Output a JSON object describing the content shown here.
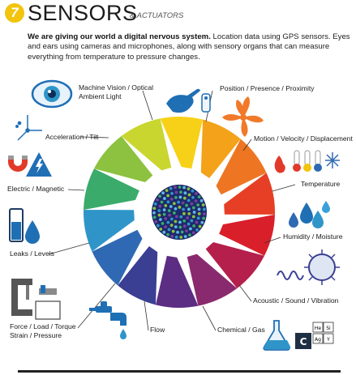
{
  "header": {
    "number": "7",
    "title": "SENSORS",
    "subtitle": "& ACTUATORS",
    "intro_bold": "We are giving our world a digital nervous system.",
    "intro_rest": " Location data using GPS sensors. Eyes and ears using cameras and microphones, along with sensory organs that can measure everything from temperature to pressure changes."
  },
  "sensors": [
    {
      "id": "vision",
      "line1": "Machine Vision / Optical",
      "line2": "Ambient Light",
      "icon": "eye-icon"
    },
    {
      "id": "position",
      "line1": "Position / Presence / Proximity",
      "line2": "",
      "icon": "hand-touch-icon"
    },
    {
      "id": "motion",
      "line1": "Motion / Velocity / Displacement",
      "line2": "",
      "icon": "fan-icon"
    },
    {
      "id": "temperature",
      "line1": "Temperature",
      "line2": "",
      "icon": "thermometer-icon"
    },
    {
      "id": "humidity",
      "line1": "Humidity / Moisture",
      "line2": "",
      "icon": "water-drops-icon"
    },
    {
      "id": "acoustic",
      "line1": "Acoustic / Sound / Vibration",
      "line2": "",
      "icon": "sound-wave-icon"
    },
    {
      "id": "chemical",
      "line1": "Chemical / Gas",
      "line2": "",
      "icon": "flask-icon"
    },
    {
      "id": "flow",
      "line1": "Flow",
      "line2": "",
      "icon": "faucet-icon"
    },
    {
      "id": "force",
      "line1": "Force / Load / Torque",
      "line2": "Strain / Pressure",
      "icon": "clamp-icon"
    },
    {
      "id": "leaks",
      "line1": "Leaks / Levels",
      "line2": "",
      "icon": "tank-icon"
    },
    {
      "id": "electric",
      "line1": "Electric / Magnetic",
      "line2": "",
      "icon": "magnet-icon"
    },
    {
      "id": "acceleration",
      "line1": "Acceleration / Tilt",
      "line2": "",
      "icon": "axes-icon"
    }
  ],
  "element_symbols": [
    "He",
    "C",
    "Si",
    "Ag",
    "Y"
  ],
  "colors": {
    "badge": "#f2c40c",
    "wheel": [
      "#f7d117",
      "#f3a21a",
      "#ee7623",
      "#e63f25",
      "#d91f2a",
      "#b51f4c",
      "#8a2a6e",
      "#5b2d83",
      "#3a3f93",
      "#2f69b3",
      "#2f95c9",
      "#3aab6a",
      "#8cc23f",
      "#c9d62f"
    ],
    "icon_blue": "#1f6fb5",
    "icon_orange": "#f07a2a",
    "icon_red": "#e13a2a"
  }
}
